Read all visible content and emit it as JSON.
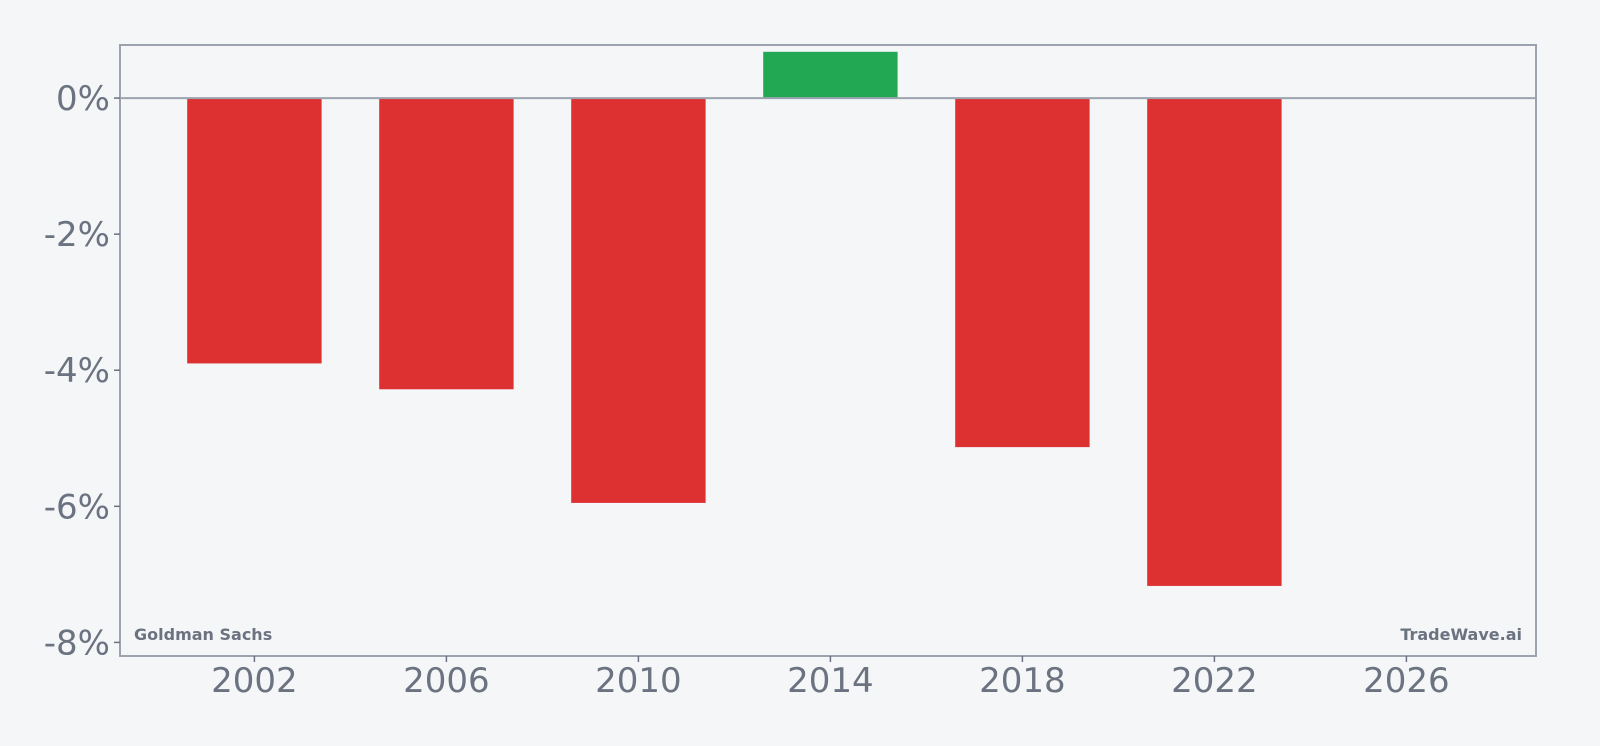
{
  "chart_data": {
    "type": "bar",
    "x": [
      2002,
      2006,
      2010,
      2014,
      2018,
      2022
    ],
    "values": [
      -3.9,
      -4.28,
      -5.95,
      0.68,
      -5.13,
      -7.17
    ],
    "colors": {
      "positive": "#22a852",
      "negative": "#dc3031"
    },
    "xlim": [
      1999.2,
      2028.7
    ],
    "ylim": [
      -8.2,
      0.78
    ],
    "x_ticks": [
      2002,
      2006,
      2010,
      2014,
      2018,
      2022,
      2026
    ],
    "x_tick_labels": [
      "2002",
      "2006",
      "2010",
      "2014",
      "2018",
      "2022",
      "2026"
    ],
    "y_ticks": [
      0,
      -2,
      -4,
      -6,
      -8
    ],
    "y_tick_labels": [
      "0%",
      "-2%",
      "-4%",
      "-6%",
      "-8%"
    ],
    "bar_width_years": 2.8,
    "grid": false,
    "zero_line": true,
    "xlabel": "",
    "ylabel": "",
    "title": ""
  },
  "annotations": {
    "left": "Goldman Sachs",
    "right": "TradeWave.ai"
  }
}
